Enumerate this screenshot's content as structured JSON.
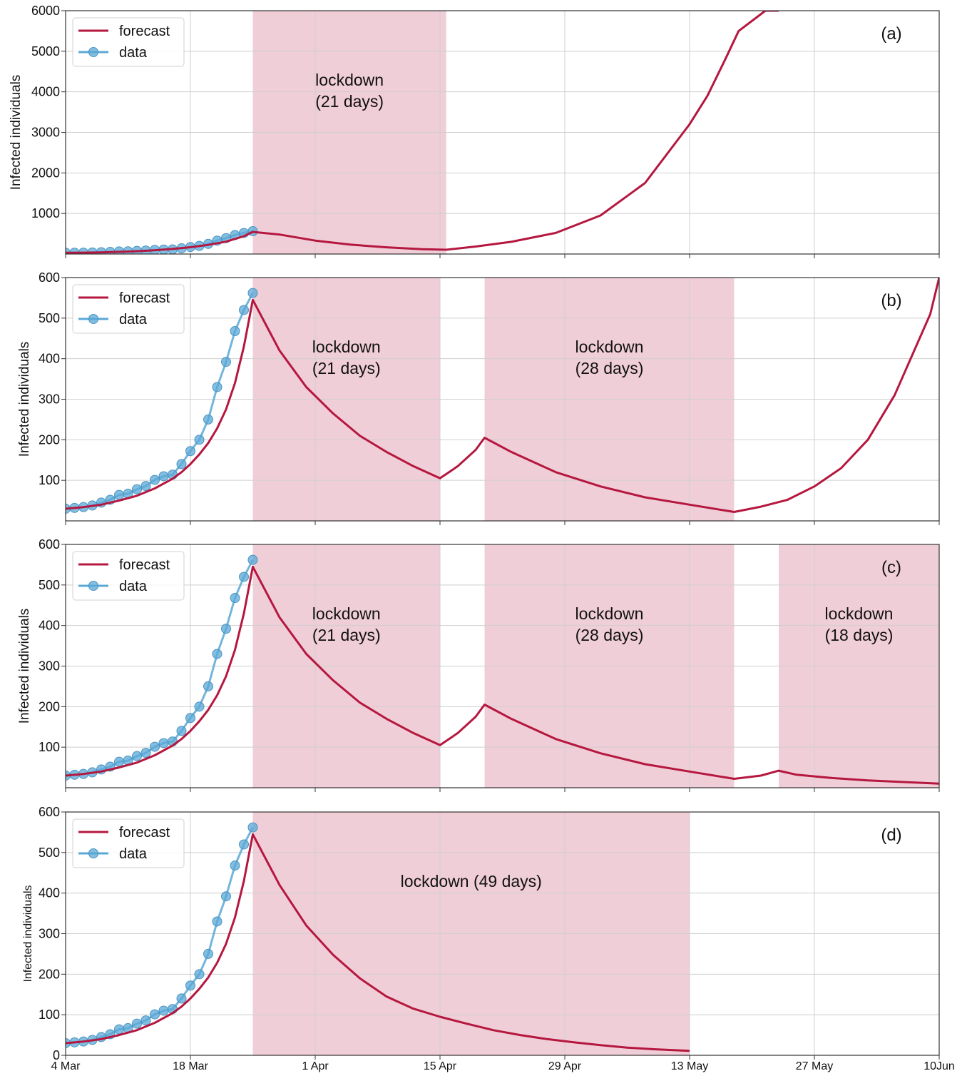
{
  "chart_data": [
    {
      "type": "line",
      "panel_label": "(a)",
      "ylabel": "Infected individuals",
      "yticks": [
        "1000",
        "2000",
        "3000",
        "4000",
        "5000",
        "6000"
      ],
      "ylim": [
        0,
        6000
      ],
      "xlim_days": [
        0,
        98
      ],
      "lockdowns": [
        {
          "label": "lockdown\n(21 days)",
          "start_day": 21,
          "end_day": 42.7
        }
      ],
      "legend": {
        "forecast": "forecast",
        "data": "data"
      },
      "data_series": {
        "name": "data",
        "x_day": [
          0,
          1,
          2,
          3,
          4,
          5,
          6,
          7,
          8,
          9,
          10,
          11,
          12,
          13,
          14,
          15,
          16,
          17,
          18,
          19,
          20,
          21
        ],
        "y": [
          30,
          32,
          34,
          38,
          45,
          52,
          64,
          67,
          78,
          86,
          101,
          110,
          114,
          140,
          172,
          200,
          250,
          330,
          392,
          468,
          520,
          562
        ]
      },
      "forecast_series": {
        "name": "forecast",
        "x_day": [
          0,
          2,
          4,
          6,
          8,
          10,
          12,
          14,
          16,
          18,
          20,
          21,
          24,
          28,
          32,
          36,
          40,
          42.7,
          46,
          50,
          55,
          60,
          65,
          70,
          72,
          74,
          75.5,
          78.5,
          80
        ],
        "y": [
          30,
          34,
          40,
          52,
          68,
          92,
          125,
          168,
          225,
          305,
          440,
          545,
          480,
          330,
          230,
          165,
          120,
          105,
          185,
          300,
          520,
          950,
          1750,
          3200,
          3900,
          4800,
          5500,
          6000,
          6000
        ]
      }
    },
    {
      "type": "line",
      "panel_label": "(b)",
      "ylabel": "Infected individuals",
      "yticks": [
        "100",
        "200",
        "300",
        "400",
        "500",
        "600"
      ],
      "ylim": [
        0,
        600
      ],
      "xlim_days": [
        0,
        98
      ],
      "lockdowns": [
        {
          "label": "lockdown\n(21 days)",
          "start_day": 21,
          "end_day": 42
        },
        {
          "label": "lockdown\n(28 days)",
          "start_day": 47,
          "end_day": 75
        }
      ],
      "legend": {
        "forecast": "forecast",
        "data": "data"
      },
      "data_series": {
        "name": "data",
        "x_day": [
          0,
          1,
          2,
          3,
          4,
          5,
          6,
          7,
          8,
          9,
          10,
          11,
          12,
          13,
          14,
          15,
          16,
          17,
          18,
          19,
          20,
          21
        ],
        "y": [
          30,
          32,
          34,
          38,
          45,
          52,
          64,
          67,
          78,
          86,
          101,
          110,
          114,
          140,
          172,
          200,
          250,
          330,
          392,
          468,
          520,
          562
        ]
      },
      "forecast_series": {
        "name": "forecast",
        "x_day": [
          0,
          2,
          4,
          6,
          8,
          10,
          12,
          13,
          14,
          15,
          16,
          17,
          18,
          19,
          20,
          21,
          24,
          27,
          30,
          33,
          36,
          39,
          42,
          44,
          46,
          47,
          50,
          55,
          60,
          65,
          70,
          75,
          78,
          81,
          84,
          87,
          90,
          93,
          95,
          97,
          98
        ],
        "y": [
          30,
          34,
          40,
          50,
          62,
          80,
          104,
          120,
          140,
          164,
          192,
          228,
          275,
          340,
          430,
          545,
          420,
          330,
          265,
          210,
          170,
          135,
          105,
          135,
          175,
          205,
          170,
          120,
          85,
          58,
          40,
          22,
          35,
          52,
          85,
          130,
          200,
          310,
          410,
          510,
          600
        ]
      }
    },
    {
      "type": "line",
      "panel_label": "(c)",
      "ylabel": "Infected individuals",
      "yticks": [
        "100",
        "200",
        "300",
        "400",
        "500",
        "600"
      ],
      "ylim": [
        0,
        600
      ],
      "xlim_days": [
        0,
        98
      ],
      "lockdowns": [
        {
          "label": "lockdown\n(21 days)",
          "start_day": 21,
          "end_day": 42
        },
        {
          "label": "lockdown\n(28 days)",
          "start_day": 47,
          "end_day": 75
        },
        {
          "label": "lockdown\n(18 days)",
          "start_day": 80,
          "end_day": 98
        }
      ],
      "legend": {
        "forecast": "forecast",
        "data": "data"
      },
      "data_series": {
        "name": "data",
        "x_day": [
          0,
          1,
          2,
          3,
          4,
          5,
          6,
          7,
          8,
          9,
          10,
          11,
          12,
          13,
          14,
          15,
          16,
          17,
          18,
          19,
          20,
          21
        ],
        "y": [
          30,
          32,
          34,
          38,
          45,
          52,
          64,
          67,
          78,
          86,
          101,
          110,
          114,
          140,
          172,
          200,
          250,
          330,
          392,
          468,
          520,
          562
        ]
      },
      "forecast_series": {
        "name": "forecast",
        "x_day": [
          0,
          2,
          4,
          6,
          8,
          10,
          12,
          13,
          14,
          15,
          16,
          17,
          18,
          19,
          20,
          21,
          24,
          27,
          30,
          33,
          36,
          39,
          42,
          44,
          46,
          47,
          50,
          55,
          60,
          65,
          70,
          75,
          78,
          80,
          82,
          86,
          90,
          94,
          98
        ],
        "y": [
          30,
          34,
          40,
          50,
          62,
          80,
          104,
          120,
          140,
          164,
          192,
          228,
          275,
          340,
          430,
          545,
          420,
          330,
          265,
          210,
          170,
          135,
          105,
          135,
          175,
          205,
          170,
          120,
          85,
          58,
          40,
          22,
          30,
          42,
          32,
          24,
          18,
          14,
          10
        ]
      }
    },
    {
      "type": "line",
      "panel_label": "(d)",
      "ylabel": "Infected individuals",
      "yticks": [
        "0",
        "100",
        "200",
        "300",
        "400",
        "500",
        "600"
      ],
      "ylim": [
        0,
        600
      ],
      "xlim_days": [
        0,
        98
      ],
      "xtick_labels": [
        "4 Mar",
        "18 Mar",
        "1 Apr",
        "15 Apr",
        "29 Apr",
        "13 May",
        "27 May",
        "10Jun"
      ],
      "xtick_days": [
        0,
        14,
        28,
        42,
        56,
        70,
        84,
        98
      ],
      "lockdowns": [
        {
          "label": "lockdown (49 days)",
          "start_day": 21,
          "end_day": 70
        }
      ],
      "legend": {
        "forecast": "forecast",
        "data": "data"
      },
      "data_series": {
        "name": "data",
        "x_day": [
          0,
          1,
          2,
          3,
          4,
          5,
          6,
          7,
          8,
          9,
          10,
          11,
          12,
          13,
          14,
          15,
          16,
          17,
          18,
          19,
          20,
          21
        ],
        "y": [
          30,
          32,
          34,
          38,
          45,
          52,
          64,
          67,
          78,
          86,
          101,
          110,
          114,
          140,
          172,
          200,
          250,
          330,
          392,
          468,
          520,
          562
        ]
      },
      "forecast_series": {
        "name": "forecast",
        "x_day": [
          0,
          2,
          4,
          6,
          8,
          10,
          12,
          13,
          14,
          15,
          16,
          17,
          18,
          19,
          20,
          21,
          24,
          27,
          30,
          33,
          36,
          39,
          42,
          45,
          48,
          51,
          54,
          57,
          60,
          63,
          66,
          70
        ],
        "y": [
          30,
          34,
          40,
          50,
          62,
          80,
          104,
          120,
          140,
          164,
          192,
          228,
          275,
          340,
          430,
          545,
          420,
          320,
          248,
          190,
          145,
          115,
          95,
          78,
          62,
          50,
          40,
          32,
          25,
          19,
          15,
          11
        ]
      }
    }
  ],
  "colors": {
    "forecast": "#b5173f",
    "data": "#5aa8d6",
    "lockdown_fill": "#e6aebe",
    "grid": "#cfcfcf"
  }
}
